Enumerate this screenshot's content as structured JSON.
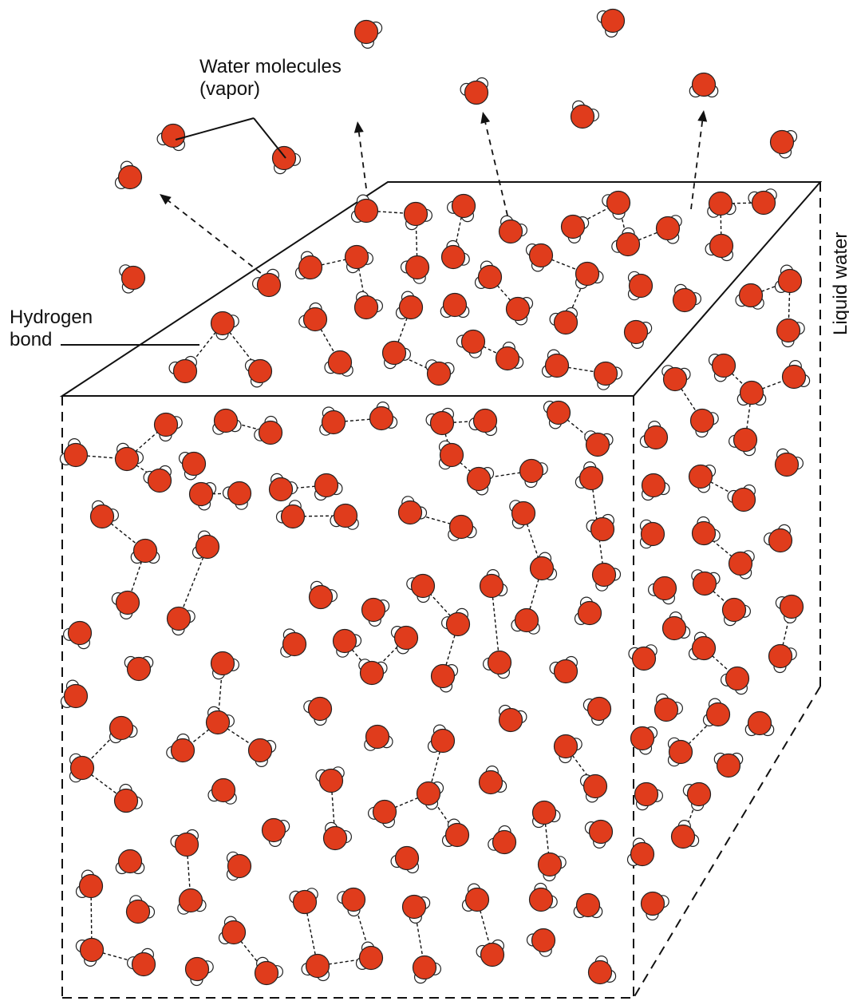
{
  "labels": {
    "vapor_line1": "Water molecules",
    "vapor_line2": "(vapor)",
    "hbond_line1": "Hydrogen",
    "hbond_line2": "bond",
    "liquid": "Liquid water"
  },
  "colors": {
    "oxygen": "#e03c1c",
    "hydrogen": "#ffffff",
    "outline": "#222222"
  }
}
